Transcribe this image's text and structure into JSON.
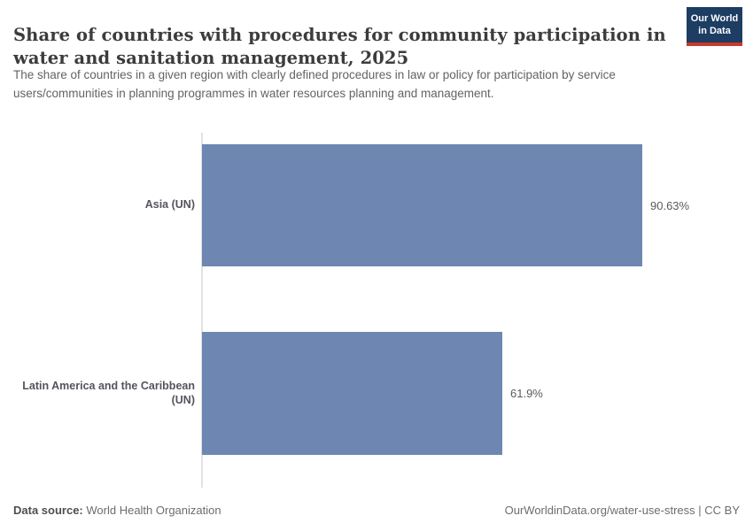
{
  "header": {
    "title": "Share of countries with procedures for community participation in water and sanitation management, 2025",
    "title_lines": [
      "Share of countries with procedures for community participation in",
      "water and sanitation management, 2025"
    ],
    "subtitle": "The share of countries in a given region with clearly defined procedures in law or policy for participation by service users/communities in planning programmes in water resources planning and management.",
    "subtitle_lines": [
      "The share of countries in a given region with clearly defined procedures in law or policy for participation by service",
      "users/communities in planning programmes in water resources planning and management."
    ],
    "logo": {
      "line1": "Our World",
      "line2": "in Data"
    }
  },
  "chart_data": {
    "type": "bar",
    "orientation": "horizontal",
    "title": "Share of countries with procedures for community participation in water and sanitation management, 2025",
    "categories": [
      "Asia (UN)",
      "Latin America and the Caribbean (UN)"
    ],
    "category_lines": [
      [
        "Asia (UN)"
      ],
      [
        "Latin America and the Caribbean",
        "(UN)"
      ]
    ],
    "values": [
      90.63,
      61.9
    ],
    "value_labels": [
      "90.63%",
      "61.9%"
    ],
    "unit": "%",
    "xlabel": "",
    "ylabel": "",
    "xlim": [
      0,
      100
    ],
    "grid": false,
    "legend": "none",
    "bar_color": "#6e87b2"
  },
  "footer": {
    "data_source_label": "Data source:",
    "data_source_value": "World Health Organization",
    "attribution": "OurWorldinData.org/water-use-stress | CC BY"
  },
  "colors": {
    "bar": "#6e87b2",
    "logo_background": "#1d3d63",
    "logo_accent": "#c7372d",
    "axis_line": "#e2e2e2"
  }
}
